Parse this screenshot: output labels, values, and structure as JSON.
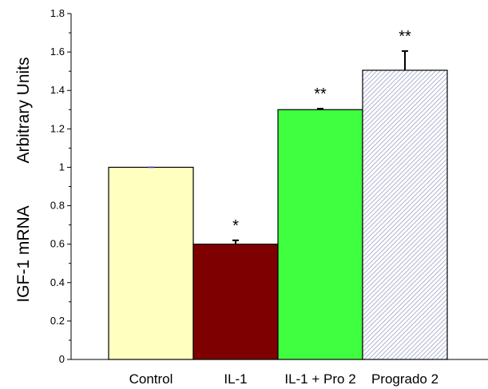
{
  "chart_data": {
    "type": "bar",
    "categories": [
      "Control",
      "IL-1",
      "IL-1 + Pro 2",
      "Progrado 2"
    ],
    "values": [
      1.0,
      0.6,
      1.3,
      1.505
    ],
    "error": [
      0.0,
      0.02,
      0.005,
      0.1
    ],
    "significance": [
      "",
      "*",
      "**",
      "**"
    ],
    "ylabel_parts": [
      "IGF-1 mRNA",
      "Arbitrary Units"
    ],
    "xlabel": "",
    "ylim": [
      0,
      1.8
    ],
    "yticks": [
      0,
      0.2,
      0.4,
      0.6,
      0.8,
      1,
      1.2,
      1.4,
      1.6,
      1.8
    ],
    "ytick_labels": [
      "0",
      "0.2",
      "0.4",
      "0.6",
      "0.8",
      "1",
      "1.2",
      "1.4",
      "1.6",
      "1.8"
    ],
    "grid": false,
    "legend": "none",
    "bar_fills": [
      "#ffffc0",
      "#7f0000",
      "#40ff40",
      "hatched"
    ],
    "colors": {
      "control": "#ffffc0",
      "il1": "#7f0000",
      "il1_pro2": "#40ff40",
      "progrado_hatch_bg": "#ffffff",
      "progrado_hatch_line": "#9aa0c8",
      "axis": "#000000"
    }
  }
}
